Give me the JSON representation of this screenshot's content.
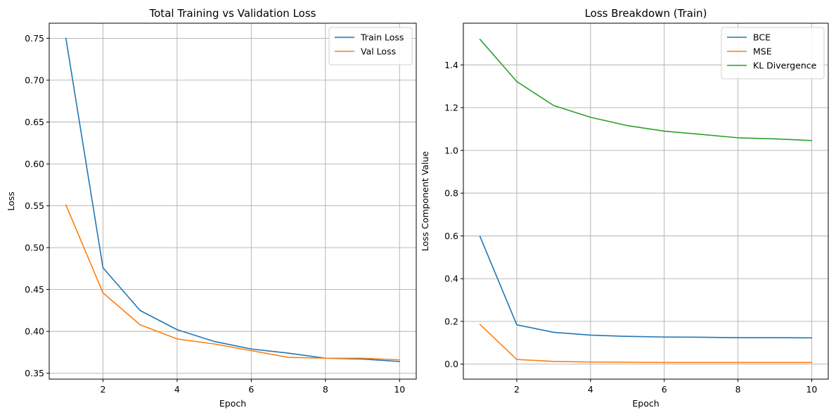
{
  "chart_data": [
    {
      "type": "line",
      "title": "Total Training vs Validation Loss",
      "xlabel": "Epoch",
      "ylabel": "Loss",
      "xlim": [
        0.55,
        10.45
      ],
      "ylim": [
        0.343,
        0.768
      ],
      "xticks": [
        2,
        4,
        6,
        8,
        10
      ],
      "yticks": [
        0.35,
        0.4,
        0.45,
        0.5,
        0.55,
        0.6,
        0.65,
        0.7,
        0.75
      ],
      "ytick_labels": [
        "0.35",
        "0.40",
        "0.45",
        "0.50",
        "0.55",
        "0.60",
        "0.65",
        "0.70",
        "0.75"
      ],
      "grid": true,
      "legend": "top-right",
      "x": [
        1,
        2,
        3,
        4,
        5,
        6,
        7,
        8,
        9,
        10
      ],
      "series": [
        {
          "name": "Train Loss",
          "color": "#1f77b4",
          "values": [
            0.75,
            0.476,
            0.425,
            0.402,
            0.388,
            0.379,
            0.374,
            0.368,
            0.367,
            0.364
          ]
        },
        {
          "name": "Val Loss",
          "color": "#ff7f0e",
          "values": [
            0.551,
            0.446,
            0.408,
            0.391,
            0.385,
            0.377,
            0.369,
            0.368,
            0.368,
            0.366
          ]
        }
      ]
    },
    {
      "type": "line",
      "title": "Loss Breakdown (Train)",
      "xlabel": "Epoch",
      "ylabel": "Loss Component Value",
      "xlim": [
        0.55,
        10.45
      ],
      "ylim": [
        -0.07,
        1.595
      ],
      "xticks": [
        2,
        4,
        6,
        8,
        10
      ],
      "yticks": [
        0.0,
        0.2,
        0.4,
        0.6,
        0.8,
        1.0,
        1.2,
        1.4
      ],
      "ytick_labels": [
        "0.0",
        "0.2",
        "0.4",
        "0.6",
        "0.8",
        "1.0",
        "1.2",
        "1.4"
      ],
      "grid": true,
      "legend": "top-right",
      "x": [
        1,
        2,
        3,
        4,
        5,
        6,
        7,
        8,
        9,
        10
      ],
      "series": [
        {
          "name": "BCE",
          "color": "#1f77b4",
          "values": [
            0.598,
            0.184,
            0.149,
            0.136,
            0.13,
            0.127,
            0.126,
            0.124,
            0.124,
            0.123
          ]
        },
        {
          "name": "MSE",
          "color": "#ff7f0e",
          "values": [
            0.186,
            0.022,
            0.013,
            0.01,
            0.009,
            0.008,
            0.008,
            0.008,
            0.008,
            0.008
          ]
        },
        {
          "name": "KL Divergence",
          "color": "#2ca02c",
          "values": [
            1.52,
            1.322,
            1.21,
            1.155,
            1.116,
            1.09,
            1.075,
            1.059,
            1.054,
            1.046
          ]
        }
      ]
    }
  ]
}
